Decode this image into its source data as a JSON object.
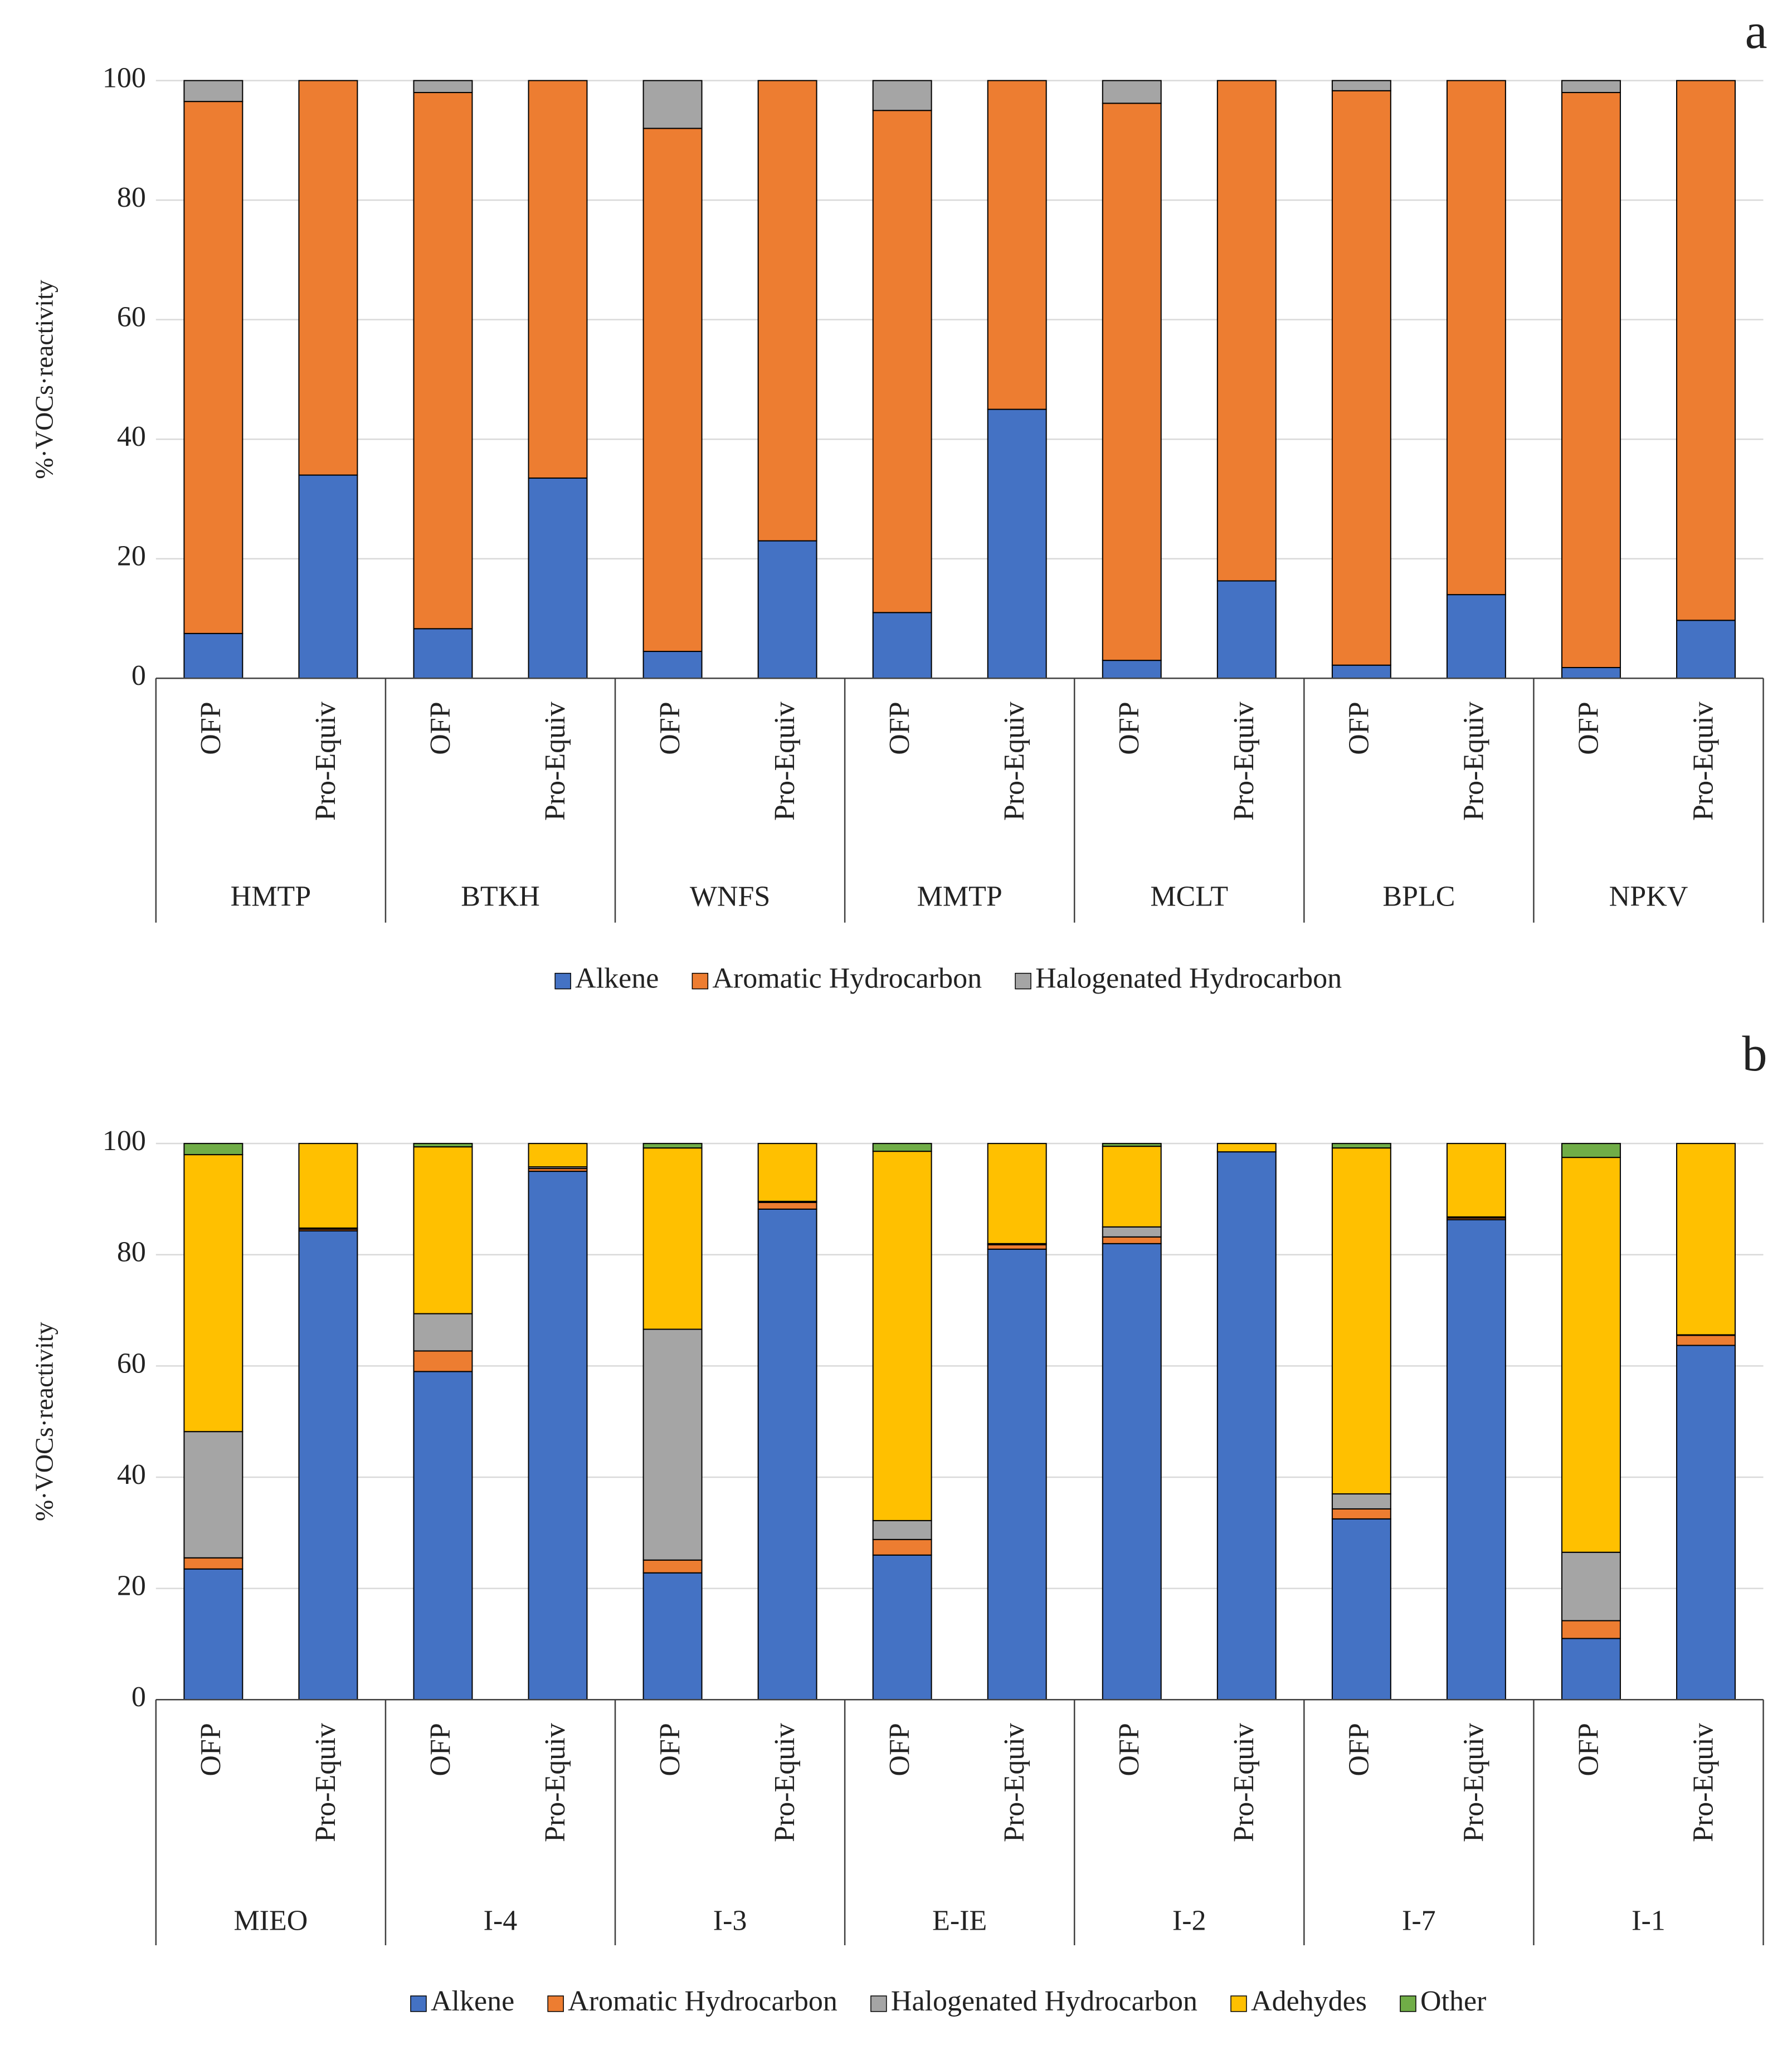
{
  "chart_data": [
    {
      "type": "bar",
      "stacked": true,
      "panel": "a",
      "ylabel": "%·VOCs·reactivity",
      "groups": [
        "HMTP",
        "BTKH",
        "WNFS",
        "MMTP",
        "MCLT",
        "BPLC",
        "NPKV"
      ],
      "categories": [
        "OFP",
        "Pro-Equiv",
        "OFP",
        "Pro-Equiv",
        "OFP",
        "Pro-Equiv",
        "OFP",
        "Pro-Equiv",
        "OFP",
        "Pro-Equiv",
        "OFP",
        "Pro-Equiv",
        "OFP",
        "Pro-Equiv"
      ],
      "ylim": [
        0,
        100
      ],
      "yticks": [
        0,
        20,
        40,
        60,
        80,
        100
      ],
      "grid": true,
      "legend": "bottom",
      "series": [
        {
          "name": "Alkene",
          "color": "#4472c4",
          "values": [
            7.5,
            34,
            8.3,
            33.5,
            4.5,
            23,
            11,
            45,
            3,
            16.3,
            2.2,
            14,
            1.8,
            9.7
          ]
        },
        {
          "name": "Aromatic Hydrocarbon",
          "color": "#ed7d31",
          "values": [
            89,
            66,
            89.7,
            66.5,
            87.5,
            77,
            84,
            55,
            93.2,
            83.7,
            96.1,
            86,
            96.2,
            90.3
          ]
        },
        {
          "name": "Halogenated Hydrocarbon",
          "color": "#a5a5a5",
          "values": [
            3.5,
            0,
            2,
            0,
            8,
            0,
            5,
            0,
            3.8,
            0,
            1.7,
            0,
            2,
            0
          ]
        }
      ]
    },
    {
      "type": "bar",
      "stacked": true,
      "panel": "b",
      "ylabel": "%·VOCs·reactivity",
      "groups": [
        "MIEO",
        "I-4",
        "I-3",
        "E-IE",
        "I-2",
        "I-7",
        "I-1"
      ],
      "categories": [
        "OFP",
        "Pro-Equiv",
        "OFP",
        "Pro-Equiv",
        "OFP",
        "Pro-Equiv",
        "OFP",
        "Pro-Equiv",
        "OFP",
        "Pro-Equiv",
        "OFP",
        "Pro-Equiv",
        "OFP",
        "Pro-Equiv"
      ],
      "ylim": [
        0,
        100
      ],
      "yticks": [
        0,
        20,
        40,
        60,
        80,
        100
      ],
      "grid": true,
      "legend": "bottom",
      "series": [
        {
          "name": "Alkene",
          "color": "#4472c4",
          "values": [
            23.5,
            84.3,
            59,
            95,
            22.8,
            88.2,
            26,
            81,
            82,
            98.5,
            32.5,
            86.3,
            11,
            63.7
          ]
        },
        {
          "name": "Aromatic Hydrocarbon",
          "color": "#ed7d31",
          "values": [
            2,
            0.3,
            3.7,
            0.5,
            2.3,
            1.2,
            2.8,
            0.8,
            1.2,
            0,
            1.8,
            0.3,
            3.2,
            1.8
          ]
        },
        {
          "name": "Halogenated Hydrocarbon",
          "color": "#a5a5a5",
          "values": [
            22.7,
            0.2,
            6.7,
            0.3,
            41.5,
            0.2,
            3.4,
            0.2,
            1.8,
            0,
            2.7,
            0.2,
            12.3,
            0.1
          ]
        },
        {
          "name": "Adehydes",
          "color": "#ffc000",
          "values": [
            49.8,
            15.2,
            30,
            4.2,
            32.6,
            10.4,
            66.4,
            18,
            14.5,
            1.5,
            62.2,
            13.2,
            71,
            34.4
          ]
        },
        {
          "name": "Other",
          "color": "#70ad47",
          "values": [
            2,
            0,
            0.6,
            0,
            0.8,
            0,
            1.4,
            0,
            0.5,
            0,
            0.8,
            0,
            2.5,
            0
          ]
        }
      ]
    }
  ]
}
